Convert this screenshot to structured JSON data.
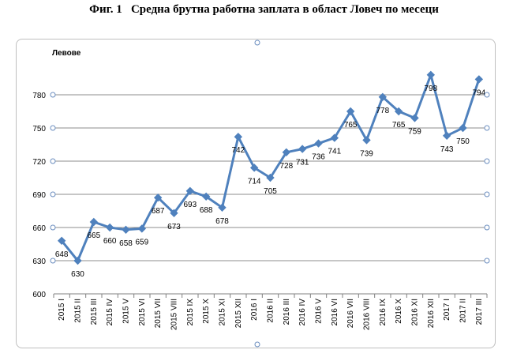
{
  "figure": {
    "title": "Фиг. 1   Средна брутна работна заплата в област Ловеч по месеци"
  },
  "chart_data": {
    "type": "line",
    "title": "Фиг. 1   Средна брутна работна заплата в област Ловеч по месеци",
    "ylabel": "Левове",
    "xlabel": "",
    "ylim": [
      600,
      800
    ],
    "yticks": [
      600,
      630,
      660,
      690,
      720,
      750,
      780
    ],
    "grid": true,
    "legend": "none",
    "line_color": "#4f81bd",
    "categories": [
      "2015 I",
      "2015 II",
      "2015 III",
      "2015 IV",
      "2015 V",
      "2015 VI",
      "2015 VII",
      "2015 VIII",
      "2015 IX",
      "2015 X",
      "2015 XI",
      "2015 XII",
      "2016 I",
      "2016 II",
      "2016 III",
      "2016 IV",
      "2016 V",
      "2016 VI",
      "2016 VII",
      "2016 VIII",
      "2016 IX",
      "2016 X",
      "2016 XI",
      "2016 XII",
      "2017 I",
      "2017 II",
      "2017 III"
    ],
    "values": [
      648,
      630,
      665,
      660,
      658,
      659,
      687,
      673,
      693,
      688,
      678,
      742,
      714,
      705,
      728,
      731,
      736,
      741,
      765,
      739,
      778,
      765,
      759,
      798,
      743,
      750,
      794
    ],
    "label_position": [
      "below",
      "below",
      "below",
      "below",
      "below",
      "below",
      "below",
      "below",
      "below",
      "below",
      "below",
      "below",
      "below",
      "below",
      "below",
      "below",
      "below",
      "below",
      "below",
      "below",
      "below",
      "below",
      "below",
      "below",
      "below",
      "below",
      "below"
    ]
  }
}
